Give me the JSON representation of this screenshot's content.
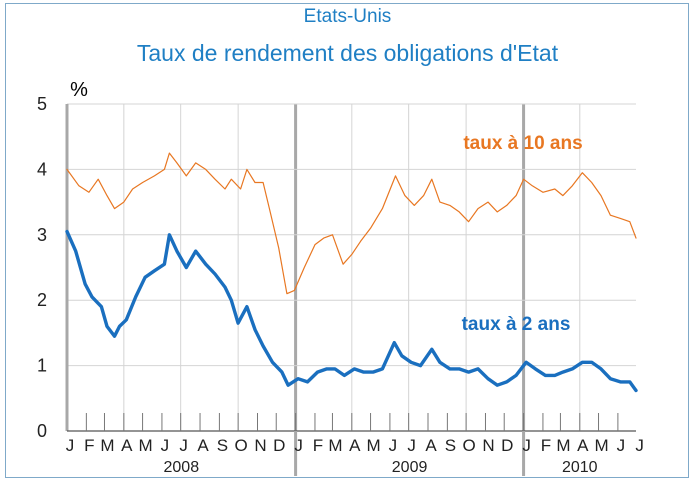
{
  "header": {
    "country": "Etats-Unis",
    "title": "Taux de rendement des obligations d'Etat"
  },
  "chart_data": {
    "type": "line",
    "ylabel": "%",
    "ylim": [
      0,
      5
    ],
    "yticks": [
      0,
      1,
      2,
      3,
      4,
      5
    ],
    "xlim": [
      "2008-01-01",
      "2010-06-30"
    ],
    "month_labels": [
      "J",
      "F",
      "M",
      "A",
      "M",
      "J",
      "J",
      "A",
      "S",
      "O",
      "N",
      "D",
      "J",
      "F",
      "M",
      "A",
      "M",
      "J",
      "J",
      "A",
      "S",
      "O",
      "N",
      "D",
      "J",
      "F",
      "M",
      "A",
      "M",
      "J",
      "J"
    ],
    "years": [
      "2008",
      "2009",
      "2010"
    ],
    "grid": true,
    "series": [
      {
        "name": "taux à 10 ans",
        "color": "#e87722",
        "points": [
          [
            "2008-01-01",
            4.0
          ],
          [
            "2008-01-20",
            3.75
          ],
          [
            "2008-02-05",
            3.65
          ],
          [
            "2008-02-20",
            3.85
          ],
          [
            "2008-03-05",
            3.6
          ],
          [
            "2008-03-17",
            3.4
          ],
          [
            "2008-04-01",
            3.5
          ],
          [
            "2008-04-15",
            3.7
          ],
          [
            "2008-05-01",
            3.8
          ],
          [
            "2008-05-20",
            3.9
          ],
          [
            "2008-06-05",
            4.0
          ],
          [
            "2008-06-13",
            4.25
          ],
          [
            "2008-06-25",
            4.1
          ],
          [
            "2008-07-10",
            3.9
          ],
          [
            "2008-07-25",
            4.1
          ],
          [
            "2008-08-10",
            4.0
          ],
          [
            "2008-08-25",
            3.85
          ],
          [
            "2008-09-10",
            3.7
          ],
          [
            "2008-09-20",
            3.85
          ],
          [
            "2008-10-05",
            3.7
          ],
          [
            "2008-10-15",
            4.0
          ],
          [
            "2008-10-28",
            3.8
          ],
          [
            "2008-11-10",
            3.8
          ],
          [
            "2008-11-20",
            3.4
          ],
          [
            "2008-12-05",
            2.8
          ],
          [
            "2008-12-18",
            2.1
          ],
          [
            "2008-12-30",
            2.15
          ],
          [
            "2009-01-15",
            2.5
          ],
          [
            "2009-02-01",
            2.85
          ],
          [
            "2009-02-15",
            2.95
          ],
          [
            "2009-03-01",
            3.0
          ],
          [
            "2009-03-18",
            2.55
          ],
          [
            "2009-04-01",
            2.7
          ],
          [
            "2009-04-15",
            2.9
          ],
          [
            "2009-05-01",
            3.1
          ],
          [
            "2009-05-20",
            3.4
          ],
          [
            "2009-06-10",
            3.9
          ],
          [
            "2009-06-25",
            3.6
          ],
          [
            "2009-07-10",
            3.45
          ],
          [
            "2009-07-25",
            3.6
          ],
          [
            "2009-08-07",
            3.85
          ],
          [
            "2009-08-20",
            3.5
          ],
          [
            "2009-09-05",
            3.45
          ],
          [
            "2009-09-20",
            3.35
          ],
          [
            "2009-10-05",
            3.2
          ],
          [
            "2009-10-20",
            3.4
          ],
          [
            "2009-11-05",
            3.5
          ],
          [
            "2009-11-20",
            3.35
          ],
          [
            "2009-12-05",
            3.45
          ],
          [
            "2009-12-20",
            3.6
          ],
          [
            "2010-01-01",
            3.85
          ],
          [
            "2010-01-15",
            3.75
          ],
          [
            "2010-02-01",
            3.65
          ],
          [
            "2010-02-20",
            3.7
          ],
          [
            "2010-03-05",
            3.6
          ],
          [
            "2010-03-20",
            3.75
          ],
          [
            "2010-04-05",
            3.95
          ],
          [
            "2010-04-20",
            3.8
          ],
          [
            "2010-05-05",
            3.6
          ],
          [
            "2010-05-20",
            3.3
          ],
          [
            "2010-06-05",
            3.25
          ],
          [
            "2010-06-20",
            3.2
          ],
          [
            "2010-06-30",
            2.95
          ]
        ]
      },
      {
        "name": "taux à 2 ans",
        "color": "#1a6fbf",
        "points": [
          [
            "2008-01-01",
            3.05
          ],
          [
            "2008-01-15",
            2.75
          ],
          [
            "2008-01-30",
            2.25
          ],
          [
            "2008-02-10",
            2.05
          ],
          [
            "2008-02-25",
            1.9
          ],
          [
            "2008-03-05",
            1.6
          ],
          [
            "2008-03-17",
            1.45
          ],
          [
            "2008-03-25",
            1.6
          ],
          [
            "2008-04-05",
            1.7
          ],
          [
            "2008-04-20",
            2.05
          ],
          [
            "2008-05-05",
            2.35
          ],
          [
            "2008-05-20",
            2.45
          ],
          [
            "2008-06-05",
            2.55
          ],
          [
            "2008-06-13",
            3.0
          ],
          [
            "2008-06-25",
            2.75
          ],
          [
            "2008-07-10",
            2.5
          ],
          [
            "2008-07-25",
            2.75
          ],
          [
            "2008-08-10",
            2.55
          ],
          [
            "2008-08-25",
            2.4
          ],
          [
            "2008-09-10",
            2.2
          ],
          [
            "2008-09-20",
            2.0
          ],
          [
            "2008-10-01",
            1.65
          ],
          [
            "2008-10-15",
            1.9
          ],
          [
            "2008-10-28",
            1.55
          ],
          [
            "2008-11-10",
            1.3
          ],
          [
            "2008-11-25",
            1.05
          ],
          [
            "2008-12-10",
            0.9
          ],
          [
            "2008-12-20",
            0.7
          ],
          [
            "2009-01-05",
            0.8
          ],
          [
            "2009-01-20",
            0.75
          ],
          [
            "2009-02-05",
            0.9
          ],
          [
            "2009-02-20",
            0.95
          ],
          [
            "2009-03-05",
            0.95
          ],
          [
            "2009-03-20",
            0.85
          ],
          [
            "2009-04-05",
            0.95
          ],
          [
            "2009-04-20",
            0.9
          ],
          [
            "2009-05-05",
            0.9
          ],
          [
            "2009-05-20",
            0.95
          ],
          [
            "2009-06-08",
            1.35
          ],
          [
            "2009-06-20",
            1.15
          ],
          [
            "2009-07-05",
            1.05
          ],
          [
            "2009-07-20",
            1.0
          ],
          [
            "2009-08-07",
            1.25
          ],
          [
            "2009-08-20",
            1.05
          ],
          [
            "2009-09-05",
            0.95
          ],
          [
            "2009-09-20",
            0.95
          ],
          [
            "2009-10-05",
            0.9
          ],
          [
            "2009-10-20",
            0.95
          ],
          [
            "2009-11-05",
            0.8
          ],
          [
            "2009-11-20",
            0.7
          ],
          [
            "2009-12-05",
            0.75
          ],
          [
            "2009-12-20",
            0.85
          ],
          [
            "2010-01-05",
            1.05
          ],
          [
            "2010-01-20",
            0.95
          ],
          [
            "2010-02-05",
            0.85
          ],
          [
            "2010-02-20",
            0.85
          ],
          [
            "2010-03-05",
            0.9
          ],
          [
            "2010-03-20",
            0.95
          ],
          [
            "2010-04-05",
            1.05
          ],
          [
            "2010-04-20",
            1.05
          ],
          [
            "2010-05-05",
            0.95
          ],
          [
            "2010-05-20",
            0.8
          ],
          [
            "2010-06-05",
            0.75
          ],
          [
            "2010-06-20",
            0.75
          ],
          [
            "2010-06-30",
            0.62
          ]
        ]
      }
    ]
  }
}
